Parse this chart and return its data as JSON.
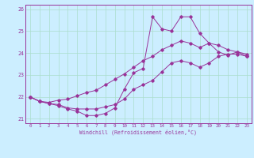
{
  "xlabel": "Windchill (Refroidissement éolien,°C)",
  "bg_color": "#cceeff",
  "grid_color": "#aaddcc",
  "line_color": "#993399",
  "xlim": [
    -0.5,
    23.5
  ],
  "ylim": [
    20.8,
    26.2
  ],
  "yticks": [
    21,
    22,
    23,
    24,
    25,
    26
  ],
  "xticks": [
    0,
    1,
    2,
    3,
    4,
    5,
    6,
    7,
    8,
    9,
    10,
    11,
    12,
    13,
    14,
    15,
    16,
    17,
    18,
    19,
    20,
    21,
    22,
    23
  ],
  "lines": [
    {
      "x": [
        0,
        1,
        2,
        3,
        4,
        5,
        6,
        7,
        8,
        9,
        10,
        11,
        12,
        13,
        14,
        15,
        16,
        17,
        18,
        19,
        20,
        21,
        22,
        23
      ],
      "y": [
        22.0,
        21.8,
        21.7,
        21.65,
        21.5,
        21.45,
        21.45,
        21.45,
        21.55,
        21.65,
        21.9,
        22.35,
        22.55,
        22.75,
        23.15,
        23.55,
        23.65,
        23.55,
        23.35,
        23.55,
        23.85,
        23.95,
        23.95,
        23.85
      ]
    },
    {
      "x": [
        0,
        1,
        2,
        3,
        4,
        5,
        6,
        7,
        8,
        9,
        10,
        11,
        12,
        13,
        14,
        15,
        16,
        17,
        18,
        19,
        20,
        21,
        22,
        23
      ],
      "y": [
        22.0,
        21.8,
        21.75,
        21.85,
        21.9,
        22.05,
        22.2,
        22.3,
        22.55,
        22.8,
        23.05,
        23.35,
        23.65,
        23.85,
        24.15,
        24.35,
        24.55,
        24.45,
        24.25,
        24.45,
        24.35,
        24.15,
        24.05,
        23.95
      ]
    },
    {
      "x": [
        0,
        1,
        2,
        3,
        4,
        5,
        6,
        7,
        8,
        9,
        10,
        11,
        12,
        13,
        14,
        15,
        16,
        17,
        18,
        19,
        20,
        21,
        22,
        23
      ],
      "y": [
        22.0,
        21.8,
        21.7,
        21.6,
        21.45,
        21.35,
        21.15,
        21.15,
        21.25,
        21.5,
        22.35,
        23.1,
        23.3,
        25.65,
        25.1,
        25.0,
        25.65,
        25.65,
        24.9,
        24.45,
        24.05,
        23.9,
        24.05,
        23.85
      ]
    }
  ]
}
